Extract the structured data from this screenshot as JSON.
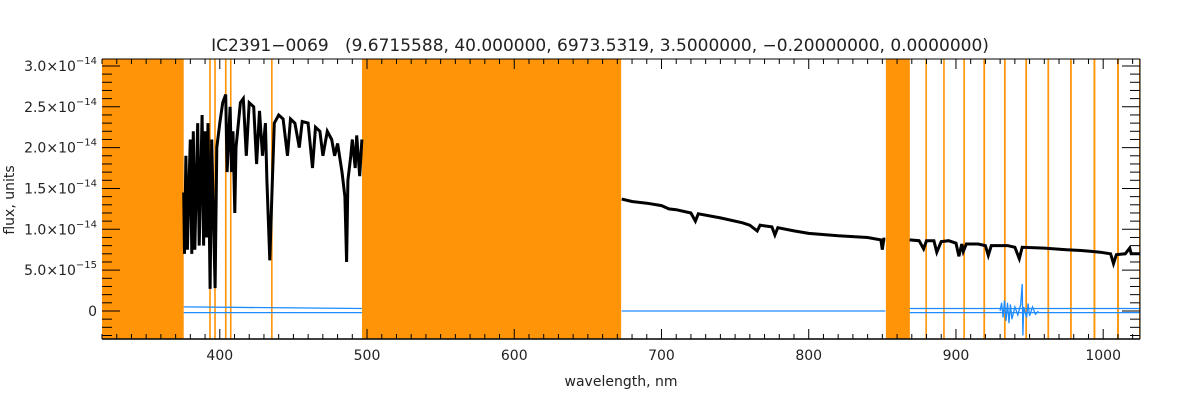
{
  "chart_data": {
    "type": "line",
    "title": "IC2391−0069   (9.6715588, 40.000000, 6973.5319, 3.5000000, −0.20000000, 0.0000000)",
    "xlabel": "wavelength, nm",
    "ylabel": "flux, units",
    "xlim": [
      320,
      1025
    ],
    "ylim_e14": [
      -0.343,
      3.085
    ],
    "y_unit_scale": 1e-14,
    "x_ticks": [
      {
        "value": 400,
        "label": "400"
      },
      {
        "value": 500,
        "label": "500"
      },
      {
        "value": 600,
        "label": "600"
      },
      {
        "value": 700,
        "label": "700"
      },
      {
        "value": 800,
        "label": "800"
      },
      {
        "value": 900,
        "label": "900"
      },
      {
        "value": 1000,
        "label": "1000"
      }
    ],
    "x_minor_step": 10,
    "y_ticks": [
      {
        "value": 0,
        "mantissa": "0",
        "exponent": ""
      },
      {
        "value": 0.5,
        "mantissa": "5.0×10",
        "exponent": "−15"
      },
      {
        "value": 1.0,
        "mantissa": "1.0×10",
        "exponent": "−14"
      },
      {
        "value": 1.5,
        "mantissa": "1.5×10",
        "exponent": "−14"
      },
      {
        "value": 2.0,
        "mantissa": "2.0×10",
        "exponent": "−14"
      },
      {
        "value": 2.5,
        "mantissa": "2.5×10",
        "exponent": "−14"
      },
      {
        "value": 3.0,
        "mantissa": "3.0×10",
        "exponent": "−14"
      }
    ],
    "y_minor_step": 0.1,
    "colors": {
      "mask": "#FF9408",
      "flux": "#000000",
      "error": "#1E8CFF"
    },
    "masked_regions": [
      [
        320,
        375.5
      ],
      [
        392.8,
        393.9
      ],
      [
        396.2,
        397.3
      ],
      [
        403.5,
        404.6
      ],
      [
        406.9,
        408.0
      ],
      [
        434.8,
        435.9
      ],
      [
        496.6,
        672.6
      ],
      [
        852.4,
        868.7
      ],
      [
        879.2,
        880.3
      ],
      [
        891.3,
        892.4
      ],
      [
        905.0,
        906.1
      ],
      [
        918.6,
        919.8
      ],
      [
        932.6,
        933.8
      ],
      [
        947.1,
        948.3
      ],
      [
        962.1,
        963.3
      ],
      [
        977.5,
        978.7
      ],
      [
        993.4,
        994.7
      ],
      [
        1009.4,
        1010.7
      ],
      [
        1024.3,
        1025
      ]
    ],
    "series": [
      {
        "name": "flux",
        "segments": [
          [
            [
              375.5,
              1.45
            ],
            [
              376,
              0.7
            ],
            [
              377,
              1.9
            ],
            [
              378,
              0.75
            ],
            [
              379,
              1.5
            ],
            [
              380,
              2.1
            ],
            [
              381,
              0.7
            ],
            [
              382,
              2.2
            ],
            [
              383,
              0.75
            ],
            [
              385,
              2.3
            ],
            [
              386,
              0.8
            ],
            [
              388,
              2.4
            ],
            [
              389,
              0.8
            ],
            [
              390,
              2.2
            ],
            [
              391,
              0.9
            ],
            [
              392,
              2.3
            ],
            [
              393.4,
              0.27
            ],
            [
              394.5,
              2.1
            ],
            [
              396.8,
              0.28
            ],
            [
              398,
              2.0
            ],
            [
              400,
              2.3
            ],
            [
              402,
              2.55
            ],
            [
              404,
              2.65
            ],
            [
              405,
              1.7
            ],
            [
              407,
              2.5
            ],
            [
              408,
              1.7
            ],
            [
              409,
              2.2
            ],
            [
              410.2,
              1.2
            ],
            [
              411,
              2.0
            ],
            [
              414,
              2.55
            ],
            [
              416,
              2.6
            ],
            [
              418,
              1.9
            ],
            [
              420,
              2.55
            ],
            [
              423,
              2.5
            ],
            [
              425,
              1.8
            ],
            [
              427,
              2.45
            ],
            [
              429,
              1.9
            ],
            [
              431,
              2.3
            ],
            [
              432,
              1.6
            ],
            [
              434,
              0.62
            ],
            [
              435.5,
              1.5
            ],
            [
              437,
              2.3
            ],
            [
              440,
              2.4
            ],
            [
              443,
              2.35
            ],
            [
              446,
              1.9
            ],
            [
              448,
              2.35
            ],
            [
              451,
              2.3
            ],
            [
              454,
              2.0
            ],
            [
              456,
              2.32
            ],
            [
              460,
              2.3
            ],
            [
              463,
              1.75
            ],
            [
              465,
              2.25
            ],
            [
              468,
              2.2
            ],
            [
              470,
              1.9
            ],
            [
              473,
              2.2
            ],
            [
              476,
              2.1
            ],
            [
              478,
              1.9
            ],
            [
              480,
              2.05
            ],
            [
              483,
              1.7
            ],
            [
              485,
              1.4
            ],
            [
              486.1,
              0.6
            ],
            [
              487,
              1.6
            ],
            [
              489,
              1.9
            ],
            [
              490,
              2.1
            ],
            [
              492,
              1.75
            ],
            [
              493,
              2.15
            ],
            [
              495,
              1.65
            ],
            [
              496.5,
              2.1
            ]
          ],
          [
            [
              673,
              1.37
            ],
            [
              680,
              1.34
            ],
            [
              690,
              1.32
            ],
            [
              700,
              1.29
            ],
            [
              705,
              1.25
            ],
            [
              710,
              1.24
            ],
            [
              720,
              1.2
            ],
            [
              723,
              1.1
            ],
            [
              725,
              1.19
            ],
            [
              740,
              1.14
            ],
            [
              755,
              1.08
            ],
            [
              760,
              1.05
            ],
            [
              765,
              0.98
            ],
            [
              767,
              1.05
            ],
            [
              775,
              1.03
            ],
            [
              777,
              0.93
            ],
            [
              779,
              1.02
            ],
            [
              790,
              0.98
            ],
            [
              800,
              0.95
            ],
            [
              820,
              0.92
            ],
            [
              840,
              0.9
            ],
            [
              849,
              0.87
            ],
            [
              850,
              0.75
            ],
            [
              851,
              0.88
            ],
            [
              852,
              0.88
            ]
          ],
          [
            [
              868.5,
              0.87
            ],
            [
              875,
              0.86
            ],
            [
              878,
              0.76
            ],
            [
              880,
              0.86
            ],
            [
              885,
              0.86
            ],
            [
              887,
              0.72
            ],
            [
              890,
              0.85
            ],
            [
              895,
              0.86
            ],
            [
              900,
              0.83
            ],
            [
              902,
              0.67
            ],
            [
              904,
              0.82
            ],
            [
              905,
              0.73
            ],
            [
              907,
              0.82
            ],
            [
              915,
              0.82
            ],
            [
              920,
              0.8
            ],
            [
              922,
              0.68
            ],
            [
              924,
              0.8
            ],
            [
              935,
              0.8
            ],
            [
              940,
              0.78
            ],
            [
              943,
              0.64
            ],
            [
              945,
              0.78
            ],
            [
              960,
              0.77
            ],
            [
              975,
              0.75
            ],
            [
              985,
              0.74
            ],
            [
              992,
              0.73
            ],
            [
              998,
              0.72
            ],
            [
              1005,
              0.7
            ],
            [
              1007,
              0.58
            ],
            [
              1009,
              0.69
            ],
            [
              1015,
              0.7
            ],
            [
              1018,
              0.77
            ],
            [
              1019,
              0.7
            ],
            [
              1025,
              0.7
            ]
          ]
        ]
      },
      {
        "name": "error",
        "segments": [
          [
            [
              375.5,
              0.05
            ],
            [
              496.5,
              0.03
            ]
          ],
          [
            [
              375.5,
              -0.02
            ],
            [
              496.5,
              -0.02
            ]
          ],
          [
            [
              673,
              0.0
            ],
            [
              852,
              0.0
            ]
          ],
          [
            [
              868.5,
              0.03
            ],
            [
              1025,
              0.03
            ]
          ],
          [
            [
              868.5,
              -0.02
            ],
            [
              1025,
              -0.02
            ]
          ],
          [
            [
              930,
              0
            ],
            [
              931,
              0.1
            ],
            [
              932,
              -0.08
            ],
            [
              933,
              0.13
            ],
            [
              934,
              -0.12
            ],
            [
              935,
              0.1
            ],
            [
              936,
              -0.15
            ],
            [
              937,
              0.08
            ],
            [
              938,
              -0.1
            ],
            [
              940,
              0.05
            ],
            [
              942,
              -0.05
            ],
            [
              944,
              0.08
            ],
            [
              945,
              0.33
            ],
            [
              945.5,
              -0.3
            ],
            [
              946,
              0.05
            ],
            [
              948,
              -0.08
            ],
            [
              949,
              0.09
            ],
            [
              950,
              -0.06
            ],
            [
              952,
              0.05
            ],
            [
              954,
              -0.04
            ],
            [
              956,
              0
            ]
          ]
        ]
      }
    ]
  }
}
